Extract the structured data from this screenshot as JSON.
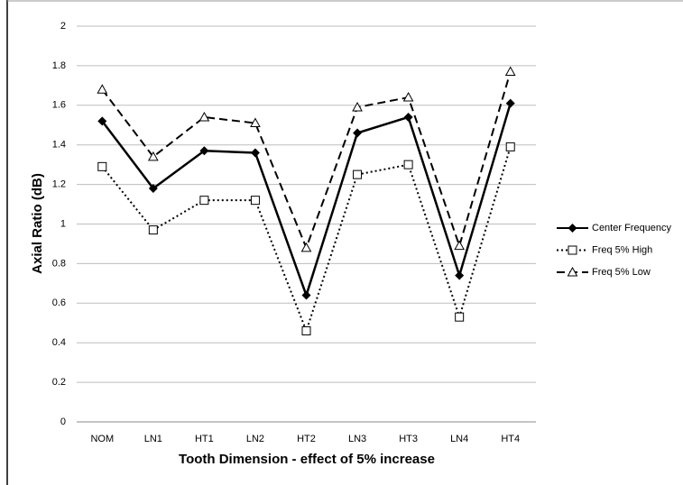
{
  "chart_data": {
    "type": "line",
    "x_label": "Tooth Dimension - effect of 5% increase",
    "y_label": "Axial Ratio (dB)",
    "categories": [
      "NOM",
      "LN1",
      "HT1",
      "LN2",
      "HT2",
      "LN3",
      "HT3",
      "LN4",
      "HT4"
    ],
    "series": [
      {
        "name": "Center Frequency",
        "color": "#000000",
        "line_style": "solid",
        "marker": "diamond",
        "values": [
          1.52,
          1.18,
          1.37,
          1.36,
          0.64,
          1.46,
          1.54,
          0.74,
          1.61
        ]
      },
      {
        "name": "Freq 5% High",
        "color": "#000000",
        "line_style": "dotted",
        "marker": "square",
        "values": [
          1.29,
          0.97,
          1.12,
          1.12,
          0.46,
          1.25,
          1.3,
          0.53,
          1.39
        ]
      },
      {
        "name": "Freq 5% Low",
        "color": "#000000",
        "line_style": "dashed",
        "marker": "triangle",
        "values": [
          1.68,
          1.34,
          1.54,
          1.51,
          0.88,
          1.59,
          1.64,
          0.89,
          1.77
        ]
      }
    ],
    "ylim": [
      0,
      2
    ],
    "yticks": [
      0,
      0.2,
      0.4,
      0.6,
      0.8,
      1,
      1.2,
      1.4,
      1.6,
      1.8,
      2
    ],
    "grid": true,
    "legend": "right"
  }
}
